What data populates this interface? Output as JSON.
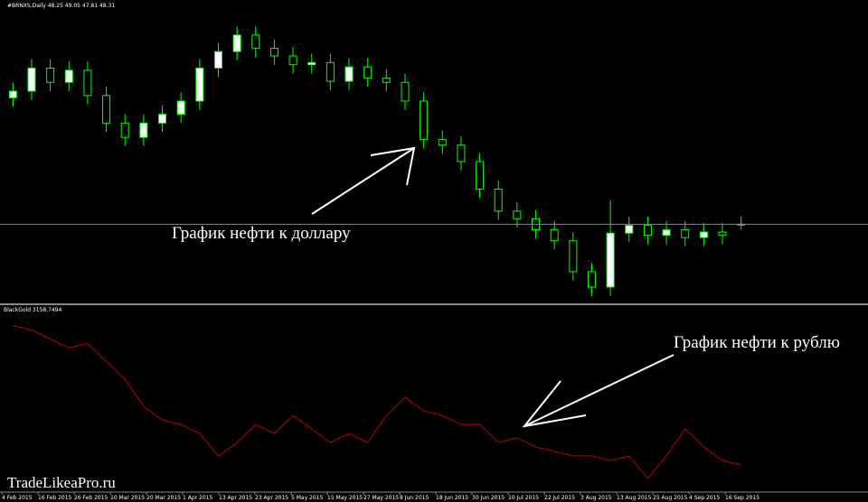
{
  "chart_data": [
    {
      "type": "candlestick",
      "header": "#BRNXS,Daily 48.25 49.05 47.81 48.31",
      "annotation": "График нефти к доллару",
      "color": "#00ff00",
      "open": [
        59.8,
        60.4,
        62.5,
        61.2,
        62.3,
        60.0,
        57.5,
        56.2,
        57.5,
        58.3,
        59.5,
        62.5,
        64.0,
        65.5,
        64.3,
        63.6,
        62.8,
        63.0,
        61.3,
        62.6,
        61.6,
        61.2,
        59.5,
        56.0,
        55.5,
        54.0,
        51.5,
        49.5,
        48.8,
        47.8,
        46.8,
        44.0,
        42.6,
        47.5,
        48.2,
        47.3,
        47.8,
        47.1,
        47.6,
        48.25
      ],
      "high": [
        61.2,
        63.3,
        63.3,
        63.1,
        63.1,
        60.8,
        58.3,
        58.3,
        59.1,
        60.3,
        63.3,
        64.8,
        66.3,
        66.3,
        65.1,
        64.4,
        63.8,
        63.8,
        63.4,
        63.4,
        62.4,
        62.0,
        60.3,
        56.8,
        56.3,
        54.8,
        52.3,
        50.3,
        49.6,
        48.6,
        47.6,
        44.8,
        50.5,
        49.0,
        49.0,
        48.6,
        48.6,
        48.4,
        48.4,
        49.05
      ],
      "low": [
        59.0,
        59.6,
        60.4,
        60.4,
        59.2,
        56.7,
        55.4,
        55.4,
        56.7,
        57.5,
        58.7,
        61.7,
        63.2,
        63.5,
        62.8,
        62.0,
        62.0,
        60.5,
        60.5,
        60.8,
        60.4,
        58.7,
        55.2,
        54.7,
        53.2,
        50.7,
        48.7,
        48.0,
        47.0,
        46.0,
        43.2,
        41.8,
        41.8,
        46.7,
        46.5,
        46.5,
        46.3,
        46.3,
        46.5,
        47.81
      ],
      "close": [
        60.4,
        62.5,
        61.2,
        62.3,
        60.0,
        57.5,
        56.2,
        57.5,
        58.3,
        59.5,
        62.5,
        64.0,
        65.5,
        64.3,
        63.6,
        62.8,
        63.0,
        61.3,
        62.6,
        61.6,
        61.2,
        59.5,
        56.0,
        55.5,
        54.0,
        51.5,
        49.5,
        48.8,
        47.8,
        46.8,
        44.0,
        42.6,
        47.5,
        48.2,
        47.3,
        47.8,
        47.1,
        47.6,
        47.3,
        48.31
      ],
      "ylim": [
        41.2,
        67.7
      ]
    },
    {
      "type": "line",
      "label": "BlackGold 3158.7494",
      "annotation": "График нефти к рублю",
      "color": "#c00000",
      "values": [
        3996,
        3969,
        3915,
        3861,
        3888,
        3780,
        3672,
        3510,
        3429,
        3402,
        3348,
        3213,
        3294,
        3402,
        3348,
        3456,
        3375,
        3294,
        3348,
        3294,
        3456,
        3564,
        3483,
        3456,
        3402,
        3402,
        3294,
        3321,
        3267,
        3240,
        3213,
        3213,
        3186,
        3213,
        3078,
        3213,
        3375,
        3267,
        3186,
        3158.7494
      ],
      "ylim": [
        2980,
        4080
      ],
      "x_labels": [
        "4 Feb 2015",
        "16 Feb 2015",
        "26 Feb 2015",
        "10 Mar 2015",
        "20 Mar 2015",
        "1 Apr 2015",
        "13 Apr 2015",
        "23 Apr 2015",
        "5 May 2015",
        "15 May 2015",
        "27 May 2015",
        "8 Jun 2015",
        "18 Jun 2015",
        "30 Jun 2015",
        "10 Jul 2015",
        "22 Jul 2015",
        "3 Aug 2015",
        "13 Aug 2015",
        "25 Aug 2015",
        "4 Sep 2015",
        "16 Sep 2015"
      ]
    }
  ],
  "watermark": "TradeLikeaPro.ru"
}
